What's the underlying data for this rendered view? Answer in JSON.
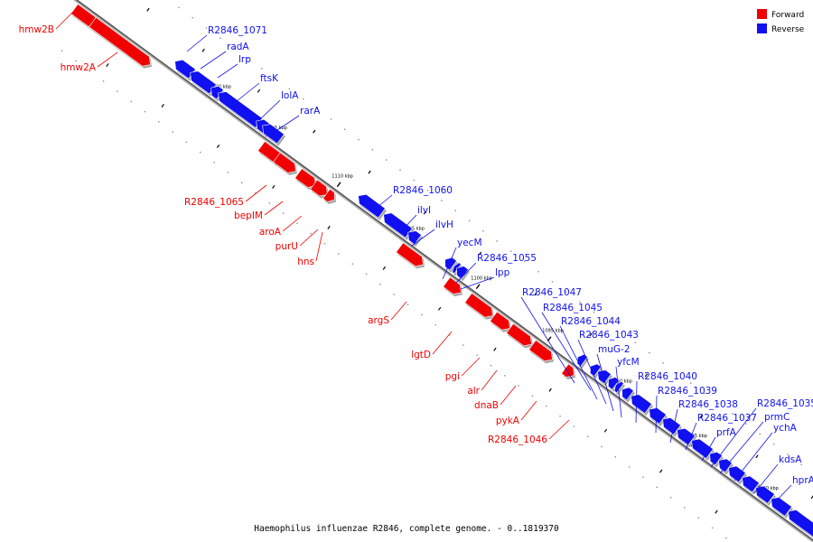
{
  "caption": "Haemophilus influenzae R2846, complete genome. - 0..1819370",
  "colors": {
    "forward": "#f00000",
    "reverse": "#1010f0"
  },
  "legend": [
    {
      "label": "Forward",
      "color": "#f00000"
    },
    {
      "label": "Reverse",
      "color": "#1010f0"
    }
  ],
  "ticks": [
    "1120 kbp",
    "1115 kbp",
    "1110 kbp",
    "1105 kbp",
    "1100 kbp",
    "1095 kbp",
    "1090 kbp",
    "1085 kbp",
    "1080 kbp"
  ],
  "forward_genes": [
    "hmw2B",
    "hmw2A",
    "R2846_1065",
    "bepIM",
    "aroA",
    "purU",
    "hns",
    "argS",
    "lgtD",
    "pgi",
    "alr",
    "dnaB",
    "pykA",
    "R2846_1046"
  ],
  "reverse_genes": [
    "R2846_1071",
    "radA",
    "lrp",
    "ftsK",
    "lolA",
    "rarA",
    "R2846_1060",
    "ilvI",
    "ilvH",
    "yecM",
    "R2846_1055",
    "lpp",
    "R2846_1047",
    "R2846_1045",
    "R2846_1044",
    "R2846_1043",
    "muG-2",
    "yfcM",
    "R2846_1040",
    "R2846_1039",
    "R2846_1038",
    "R2846_1037",
    "R2846_1035",
    "prmC",
    "prfA",
    "ychA",
    "kdsA",
    "hprA"
  ]
}
